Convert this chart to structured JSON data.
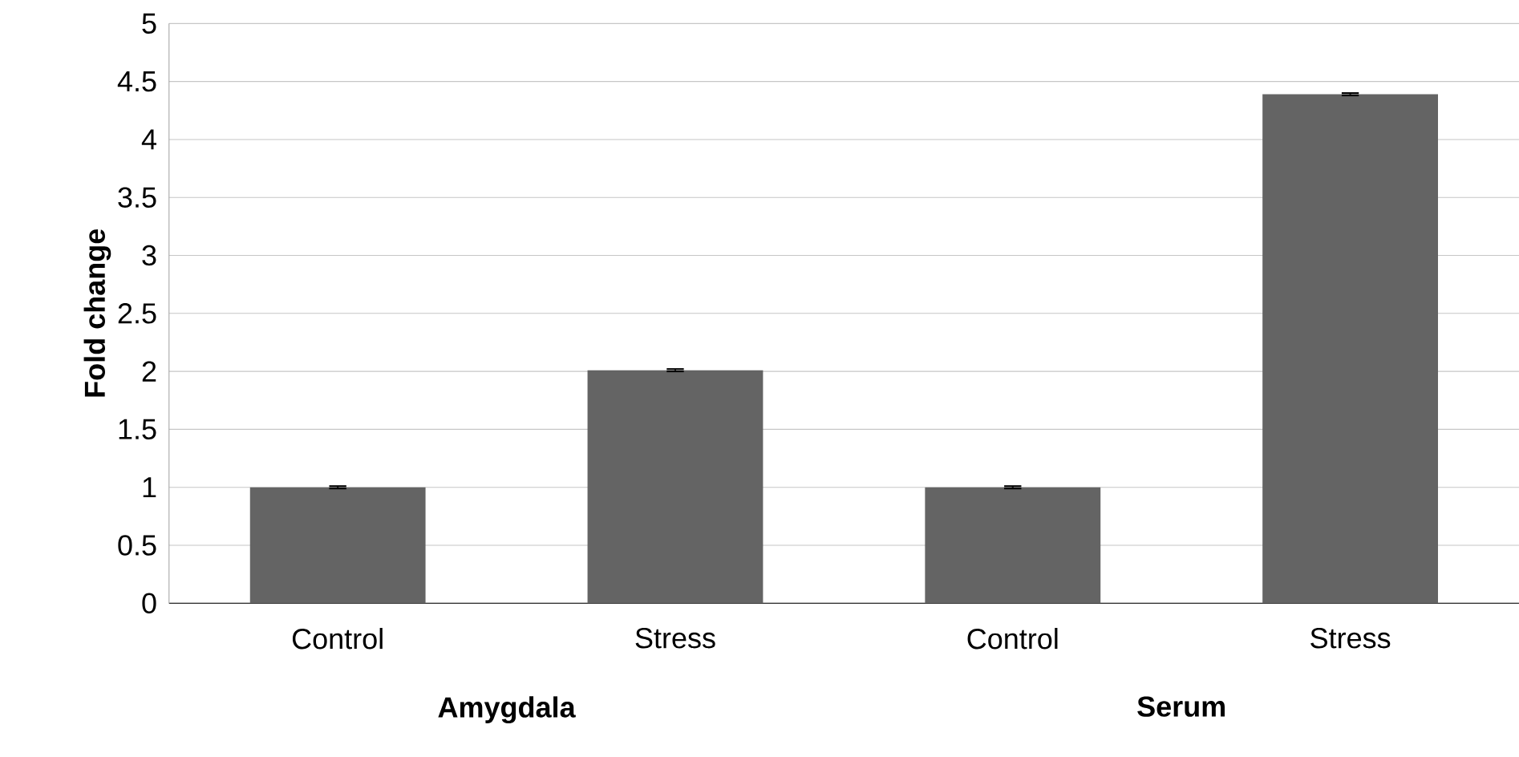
{
  "chart_data": {
    "type": "bar",
    "categories": [
      "Control",
      "Stress",
      "Control",
      "Stress"
    ],
    "values": [
      1.0,
      2.01,
      1.0,
      4.39
    ],
    "errors": [
      0.01,
      0.01,
      0.01,
      0.01
    ],
    "color": "#646464",
    "ylabel": "Fold change",
    "ylim": [
      0,
      5
    ],
    "yticks": [
      0,
      0.5,
      1,
      1.5,
      2,
      2.5,
      3,
      3.5,
      4,
      4.5,
      5
    ],
    "grid": "y",
    "annotations": [
      "Amygdala",
      "Serum"
    ]
  }
}
